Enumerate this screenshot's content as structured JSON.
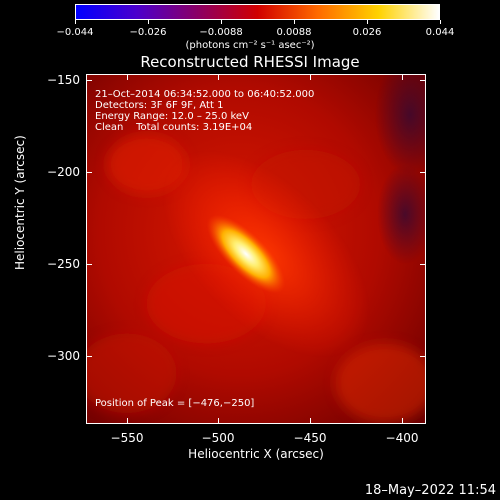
{
  "colorbar": {
    "ticks": [
      "−0.044",
      "−0.026",
      "−0.0088",
      "0.0088",
      "0.026",
      "0.044"
    ],
    "unit": "(photons cm⁻² s⁻¹ asec⁻²)"
  },
  "plot": {
    "title": "Reconstructed RHESSI Image",
    "info_lines": [
      "21–Oct–2014 06:34:52.000 to 06:40:52.000",
      "Detectors: 3F 6F 9F, Att 1",
      "Energy Range: 12.0 – 25.0 keV",
      "Clean    Total counts: 3.19E+04"
    ],
    "peak_text": "Position of Peak = [−476,−250]",
    "xlabel": "Heliocentric X (arcsec)",
    "ylabel": "Heliocentric Y (arcsec)",
    "xticks": [
      "−550",
      "−500",
      "−450",
      "−400"
    ],
    "yticks": [
      "−150",
      "−200",
      "−250",
      "−300"
    ]
  },
  "footer": {
    "timestamp": "18–May–2022 11:54"
  },
  "colors": {
    "background": "#000000",
    "colormap": [
      "#0000ff",
      "#4b00cc",
      "#8a0066",
      "#d00000",
      "#ff6a00",
      "#ffd200",
      "#ffffff"
    ]
  }
}
